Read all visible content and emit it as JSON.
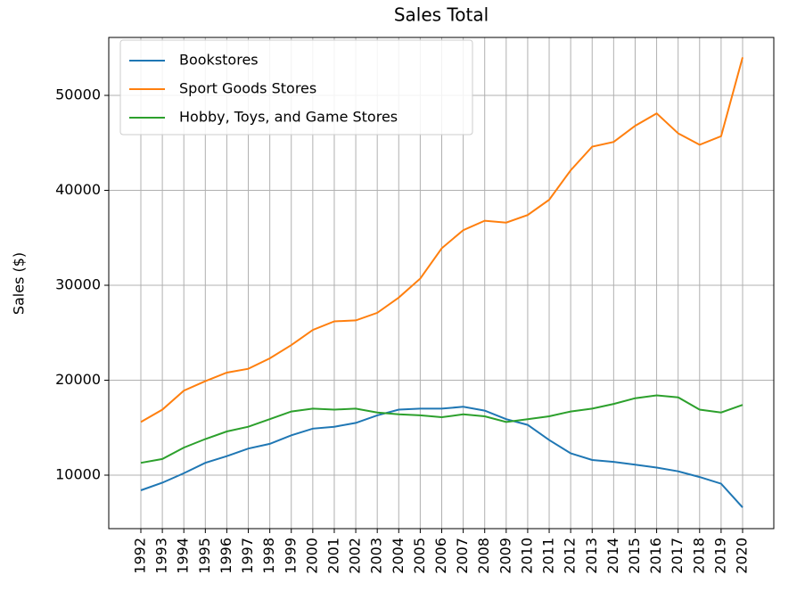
{
  "chart_data": {
    "type": "line",
    "title": "Sales Total",
    "y_label": "Sales ($)",
    "categories": [
      "1992",
      "1993",
      "1994",
      "1995",
      "1996",
      "1997",
      "1998",
      "1999",
      "2000",
      "2001",
      "2002",
      "2003",
      "2004",
      "2005",
      "2006",
      "2007",
      "2008",
      "2009",
      "2010",
      "2011",
      "2012",
      "2013",
      "2014",
      "2015",
      "2016",
      "2017",
      "2018",
      "2019",
      "2020"
    ],
    "series": [
      {
        "name": "Bookstores",
        "color": "#1f77b4",
        "values": [
          8400,
          9200,
          10200,
          11300,
          12000,
          12800,
          13300,
          14200,
          14900,
          15100,
          15500,
          16300,
          16900,
          17000,
          17000,
          17200,
          16800,
          15900,
          15300,
          13700,
          12300,
          11600,
          11400,
          11100,
          10800,
          10400,
          9800,
          9100,
          6600
        ]
      },
      {
        "name": "Sport Goods Stores",
        "color": "#ff7f0e",
        "values": [
          15600,
          16900,
          18900,
          19900,
          20800,
          21200,
          22300,
          23700,
          25300,
          26200,
          26300,
          27100,
          28700,
          30700,
          33900,
          35800,
          36800,
          36600,
          37400,
          39000,
          42100,
          44600,
          45100,
          46800,
          48100,
          46000,
          44800,
          45700,
          54000
        ]
      },
      {
        "name": "Hobby, Toys, and Game Stores",
        "color": "#2ca02c",
        "values": [
          11300,
          11700,
          12900,
          13800,
          14600,
          15100,
          15900,
          16700,
          17000,
          16900,
          17000,
          16600,
          16400,
          16300,
          16100,
          16400,
          16200,
          15600,
          15900,
          16200,
          16700,
          17000,
          17500,
          18100,
          18400,
          18200,
          16900,
          16600,
          17400
        ]
      }
    ],
    "ylim": [
      4366,
      56103
    ],
    "yticks": [
      10000,
      20000,
      30000,
      40000,
      50000
    ],
    "grid": true,
    "legend": "upper left"
  }
}
